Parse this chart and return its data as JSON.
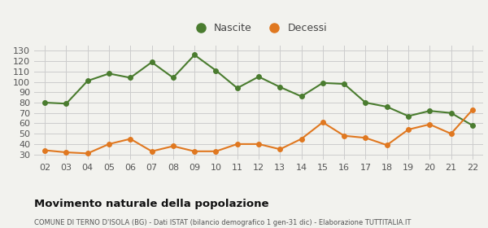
{
  "years": [
    "02",
    "03",
    "04",
    "05",
    "06",
    "07",
    "08",
    "09",
    "10",
    "11",
    "12",
    "13",
    "14",
    "15",
    "16",
    "17",
    "18",
    "19",
    "20",
    "21",
    "22"
  ],
  "nascite": [
    80,
    79,
    101,
    108,
    104,
    119,
    104,
    126,
    111,
    94,
    105,
    95,
    86,
    99,
    98,
    80,
    76,
    67,
    72,
    70,
    58
  ],
  "decessi": [
    34,
    32,
    31,
    40,
    45,
    33,
    38,
    33,
    33,
    40,
    40,
    35,
    45,
    61,
    48,
    46,
    39,
    54,
    59,
    50,
    73
  ],
  "nascite_color": "#4a7c2f",
  "decessi_color": "#e07820",
  "bg_color": "#f2f2ee",
  "grid_color": "#cccccc",
  "title": "Movimento naturale della popolazione",
  "subtitle": "COMUNE DI TERNO D'ISOLA (BG) - Dati ISTAT (bilancio demografico 1 gen-31 dic) - Elaborazione TUTTITALIA.IT",
  "legend_nascite": "Nascite",
  "legend_decessi": "Decessi",
  "ylim": [
    25,
    135
  ],
  "yticks": [
    30,
    40,
    50,
    60,
    70,
    80,
    90,
    100,
    110,
    120,
    130
  ]
}
